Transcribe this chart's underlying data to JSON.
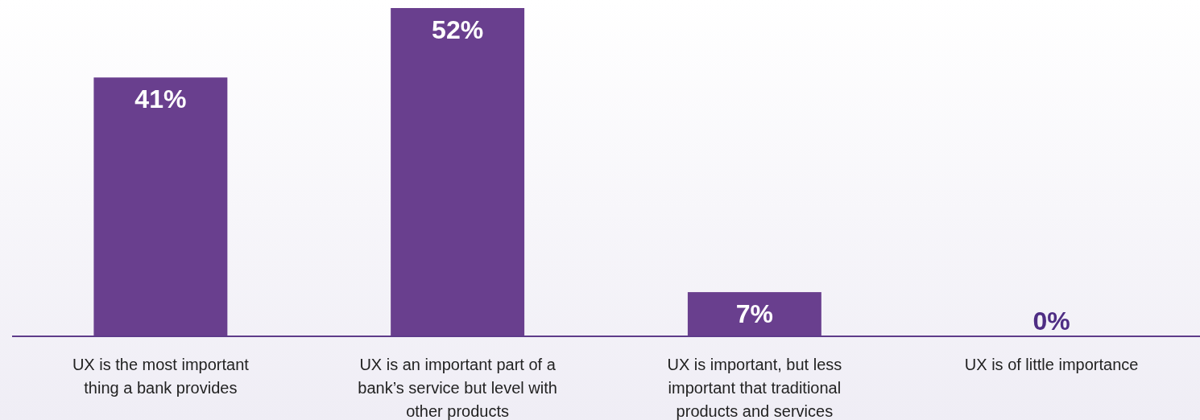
{
  "chart_data": {
    "type": "bar",
    "categories": [
      "UX is the most important thing a bank provides",
      "UX is an important part of a bank’s service but level with other products",
      "UX is important, but less important that traditional products and services",
      "UX is of little importance"
    ],
    "values": [
      41,
      52,
      7,
      0
    ],
    "value_labels": [
      "41%",
      "52%",
      "7%",
      "0%"
    ],
    "color": "#693f8e"
  }
}
